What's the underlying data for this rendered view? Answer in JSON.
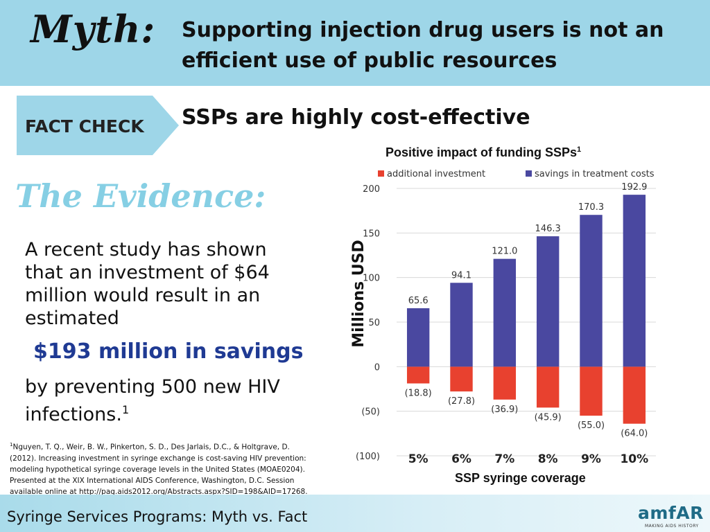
{
  "header": {
    "myth_label": "Myth:",
    "headline": "Supporting injection drug users is not an efficient use of public resources"
  },
  "fact_check": {
    "label": "FACT CHECK",
    "statement": "SSPs are highly cost-effective"
  },
  "evidence": {
    "heading": "The Evidence:",
    "body_1": "A recent study has shown that an investment of $64 million would result in an estimated",
    "highlight": "$193 million in savings",
    "body_2": "by preventing 500 new HIV infections.",
    "body_2_sup": "1"
  },
  "citation": {
    "sup": "1",
    "text": "Nguyen, T. Q., Weir, B. W., Pinkerton, S. D., Des Jarlais, D.C., & Holtgrave, D. (2012). Increasing investment in syringe exchange is cost-saving HIV prevention: modeling hypothetical syringe coverage levels in the United States (MOAE0204). Presented at the XIX International AIDS Conference, Washington, D.C. Session available online at http://pag.aids2012.org/Abstracts.aspx?SID=198&AID=17268."
  },
  "chart_data": {
    "type": "bar",
    "title": "Positive impact of funding SSPs",
    "title_sup": "1",
    "xlabel": "SSP syringe coverage",
    "ylabel": "Millions USD",
    "categories": [
      "5%",
      "6%",
      "7%",
      "8%",
      "9%",
      "10%"
    ],
    "series": [
      {
        "name": "additional investment",
        "values": [
          -18.8,
          -27.8,
          -36.9,
          -45.9,
          -55.0,
          -64.0
        ],
        "labels": [
          "(18.8)",
          "(27.8)",
          "(36.9)",
          "(45.9)",
          "(55.0)",
          "(64.0)"
        ],
        "color": "#e8412f"
      },
      {
        "name": "savings in treatment costs",
        "values": [
          65.6,
          94.1,
          121.0,
          146.3,
          170.3,
          192.9
        ],
        "labels": [
          "65.6",
          "94.1",
          "121.0",
          "146.3",
          "170.3",
          "192.9"
        ],
        "color": "#4a48a0"
      }
    ],
    "ylim": [
      -100,
      200
    ],
    "yticks": [
      200,
      150,
      100,
      50,
      0,
      -50,
      -100
    ],
    "ytick_labels": [
      "200",
      "150",
      "100",
      "50",
      "0",
      "(50)",
      "(100)"
    ],
    "legend_position": "top"
  },
  "footer": {
    "title": "Syringe Services Programs:  Myth vs. Fact",
    "logo": "amfAR",
    "logo_tagline": "MAKING AIDS HISTORY"
  }
}
